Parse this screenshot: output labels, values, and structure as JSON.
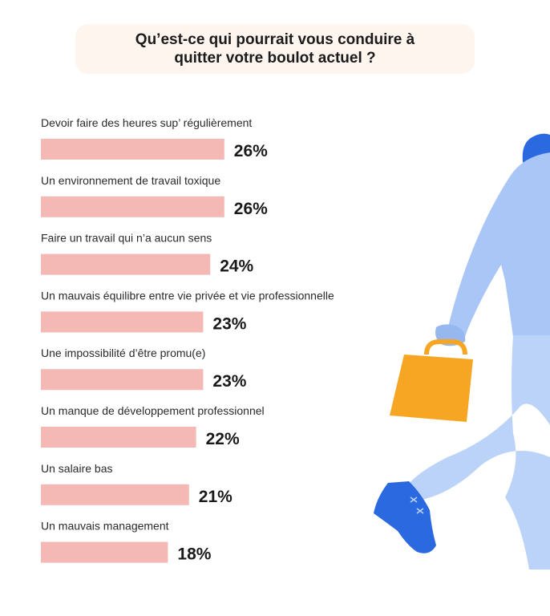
{
  "title": "Qu’est-ce qui pourrait vous conduire à quitter votre boulot actuel ?",
  "colors": {
    "bar": "#f4b9b5",
    "title_bg": "#fdf5ee",
    "figure_body": "#a9c6f6",
    "figure_pants": "#bcd3f9",
    "briefcase": "#f7a623",
    "shoe": "#2b69e0"
  },
  "chart_data": {
    "type": "bar",
    "orientation": "horizontal",
    "title": "Qu’est-ce qui pourrait vous conduire à quitter votre boulot actuel ?",
    "categories": [
      "Devoir faire des heures sup’ régulièrement",
      "Un environnement de travail toxique",
      "Faire un travail qui n’a aucun sens",
      "Un mauvais équilibre entre vie privée et vie professionnelle",
      "Une impossibilité d’être promu(e)",
      "Un manque de développement professionnel",
      "Un salaire bas",
      "Un mauvais management"
    ],
    "values": [
      26,
      26,
      24,
      23,
      23,
      22,
      21,
      18
    ],
    "value_labels": [
      "26%",
      "26%",
      "24%",
      "23%",
      "23%",
      "22%",
      "21%",
      "18%"
    ],
    "unit": "%",
    "xlim": [
      0,
      100
    ],
    "grid": false,
    "legend": "none"
  }
}
